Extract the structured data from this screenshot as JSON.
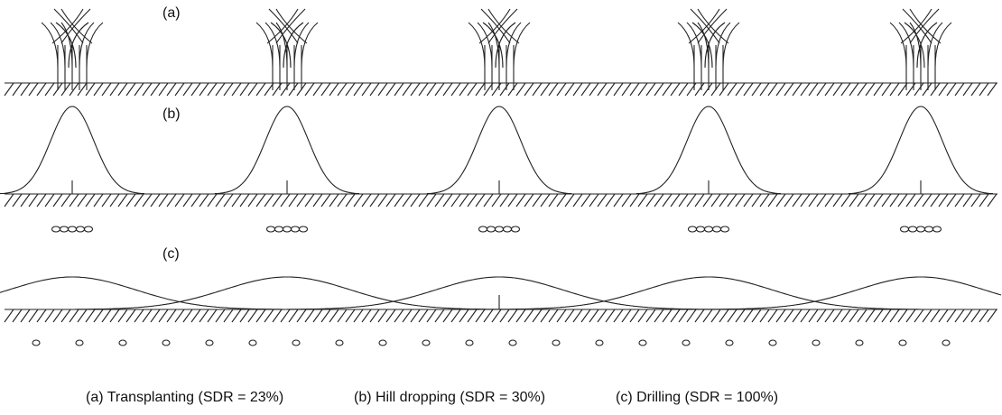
{
  "panels": [
    {
      "label": "(a)"
    },
    {
      "label": "(b)"
    },
    {
      "label": "(c)"
    }
  ],
  "caption": [
    "(a) Transplanting (SDR = 23%)",
    "(b) Hill dropping (SDR = 30%)",
    "(c) Drilling (SDR = 100%)"
  ]
}
